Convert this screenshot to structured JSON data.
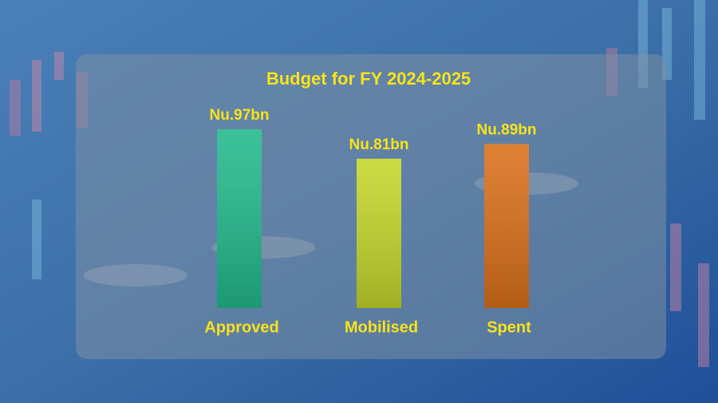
{
  "chart_data": {
    "type": "bar",
    "title": "Budget for FY 2024-2025",
    "categories": [
      "Approved",
      "Mobilised",
      "Spent"
    ],
    "values": [
      97,
      81,
      89
    ],
    "value_labels": [
      "Nu.97bn",
      "Nu.81bn",
      "Nu.89bn"
    ],
    "colors": [
      "#22b98c",
      "#c3d62a",
      "#d9701a"
    ]
  }
}
